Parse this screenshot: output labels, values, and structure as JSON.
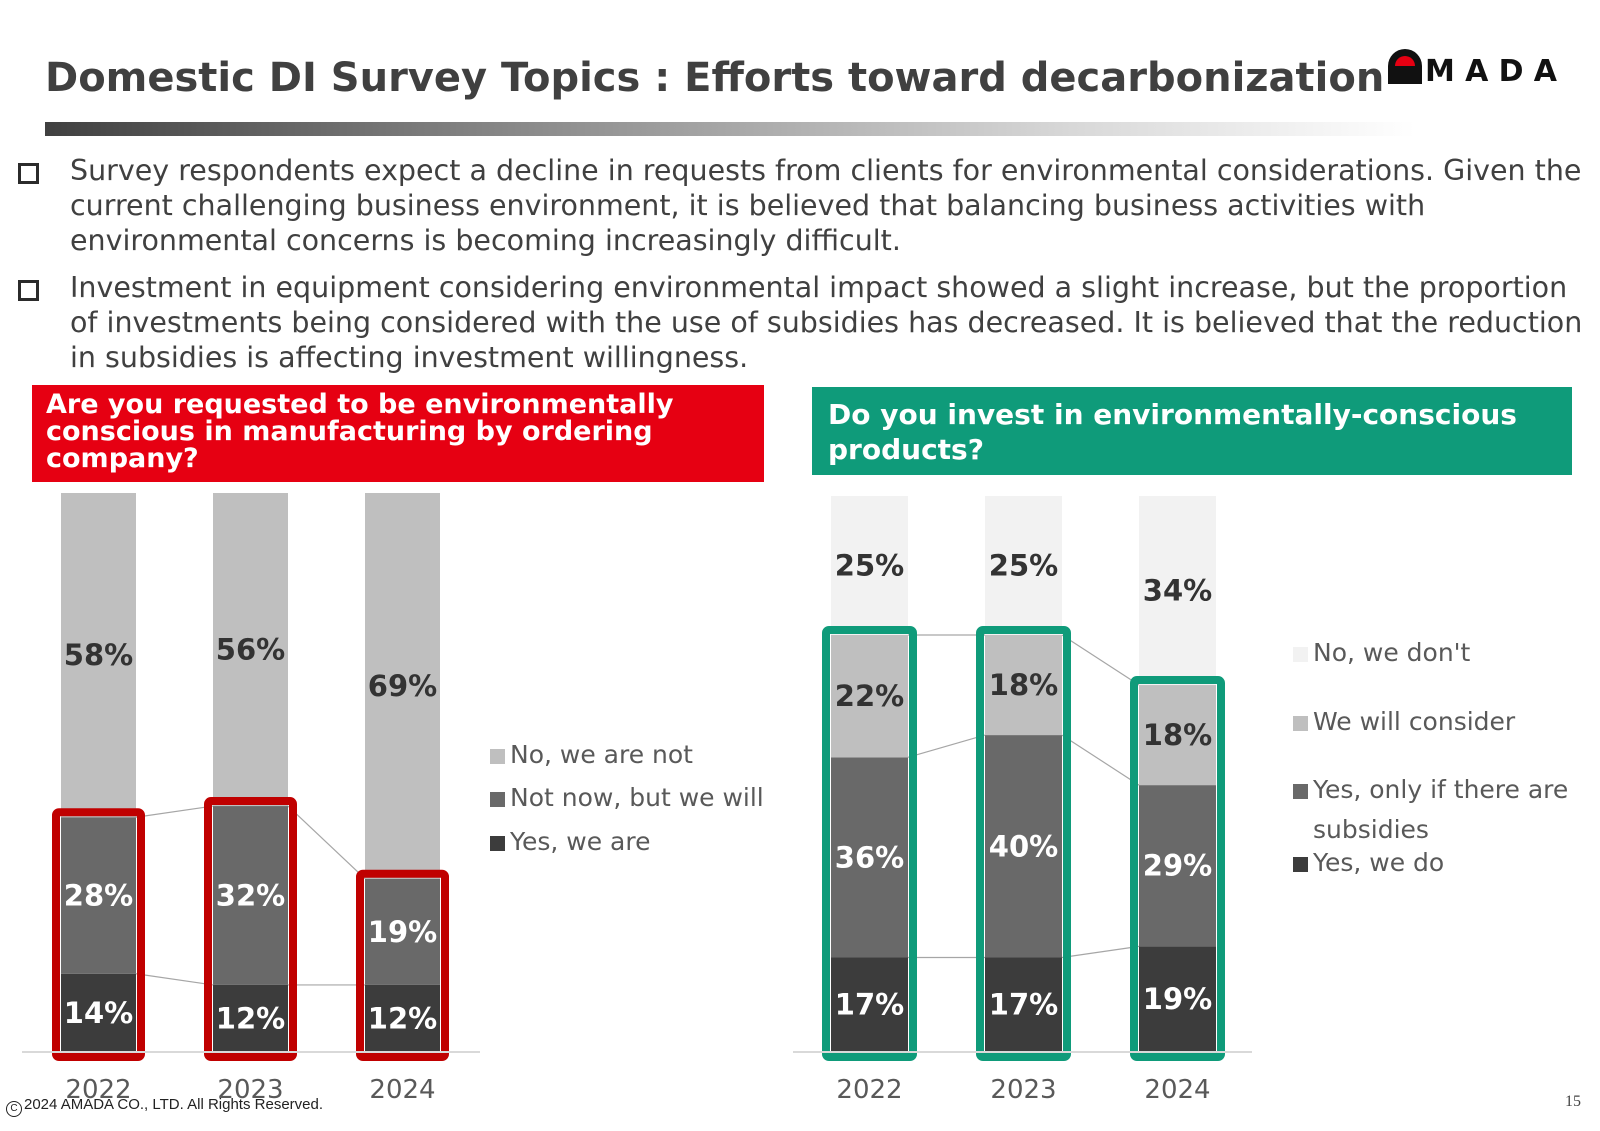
{
  "title": "Domestic DI Survey Topics : Efforts toward decarbonization",
  "logo_text": "AMADA",
  "bullets": [
    "Survey respondents expect a decline in requests from clients for environmental considerations. Given the current challenging business environment, it is believed that balancing business activities with environmental concerns is becoming increasingly difficult.",
    "Investment in equipment considering environmental impact showed a slight increase, but the proportion of investments being considered with the use of subsidies has decreased. It is believed that the reduction in subsidies is affecting investment willingness."
  ],
  "colors": {
    "title_bar": "#404040",
    "red_accent": "#e60012",
    "red_highlight": "#c00000",
    "green_accent": "#0f9b7a",
    "green_highlight": "#0f9b7a",
    "bar_light": "#bfbfbf",
    "bar_lightest": "#f2f2f2",
    "bar_mid": "#696969",
    "bar_dark": "#3c3c3c"
  },
  "footer": "2024 AMADA CO., LTD. All Rights Reserved.",
  "copyright_symbol": "C",
  "page_number": "15",
  "chart_data": [
    {
      "type": "bar",
      "stacked": true,
      "title": "Are you requested to be environmentally conscious in manufacturing by ordering company?",
      "categories": [
        "2022",
        "2023",
        "2024"
      ],
      "series": [
        {
          "name": "Yes, we are",
          "values": [
            14,
            12,
            12
          ],
          "labels": [
            "14%",
            "12%",
            "12%"
          ],
          "color": "#3c3c3c"
        },
        {
          "name": "Not now, but we will",
          "values": [
            28,
            32,
            19
          ],
          "labels": [
            "28%",
            "32%",
            "19%"
          ],
          "color": "#696969"
        },
        {
          "name": "No, we are not",
          "values": [
            58,
            56,
            69
          ],
          "labels": [
            "58%",
            "56%",
            "69%"
          ],
          "color": "#bfbfbf"
        }
      ],
      "legend": [
        "No, we are not",
        "Not now, but we will",
        "Yes, we are"
      ],
      "ylim": [
        0,
        100
      ],
      "grid": false,
      "legend_position": "right",
      "highlight_series": [
        "Yes, we are",
        "Not now, but we will"
      ]
    },
    {
      "type": "bar",
      "stacked": true,
      "title": "Do you invest in environmentally-conscious products?",
      "categories": [
        "2022",
        "2023",
        "2024"
      ],
      "series": [
        {
          "name": "Yes, we do",
          "values": [
            17,
            17,
            19
          ],
          "labels": [
            "17%",
            "17%",
            "19%"
          ],
          "color": "#3c3c3c"
        },
        {
          "name": "Yes, only if there are subsidies",
          "values": [
            36,
            40,
            29
          ],
          "labels": [
            "36%",
            "40%",
            "29%"
          ],
          "color": "#696969"
        },
        {
          "name": "We will consider",
          "values": [
            22,
            18,
            18
          ],
          "labels": [
            "22%",
            "18%",
            "18%"
          ],
          "color": "#bfbfbf"
        },
        {
          "name": "No, we don't",
          "values": [
            25,
            25,
            34
          ],
          "labels": [
            "25%",
            "25%",
            "34%"
          ],
          "color": "#f2f2f2"
        }
      ],
      "legend": [
        "No, we don't",
        "We will consider",
        "Yes, only if there are subsidies",
        "Yes, we do"
      ],
      "ylim": [
        0,
        100
      ],
      "grid": false,
      "legend_position": "right",
      "highlight_series": [
        "Yes, we do",
        "Yes, only if there are subsidies",
        "We will consider"
      ]
    }
  ]
}
